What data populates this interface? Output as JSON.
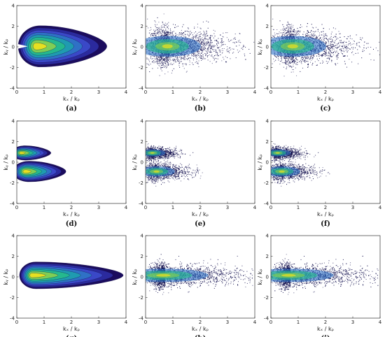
{
  "colors": {
    "levels": [
      "#1b0c5e",
      "#2b2a9e",
      "#3a48c8",
      "#2f71c6",
      "#1f9bb0",
      "#25b88e",
      "#7fce55",
      "#e6e021"
    ],
    "scatter": "#0d0a4a"
  },
  "chart_data": [
    {
      "caption": "(a)",
      "type": "contour",
      "xlabel": "kₓ / kₚ",
      "ylabel": "kᵧ / kₚ",
      "xlim": [
        0,
        4
      ],
      "ylim": [
        -4,
        4
      ],
      "xticks": [
        "0",
        "1",
        "2",
        "3",
        "4"
      ],
      "yticks": [
        "4",
        "2",
        "0",
        "-2",
        "-4"
      ],
      "blobs": [
        {
          "cx": 0.85,
          "cy": 0.05,
          "rx_right": 2.45,
          "rx_left": 0.8,
          "ry": 2.0,
          "gap_y": 0.35
        }
      ]
    },
    {
      "caption": "(b)",
      "type": "scatter",
      "xlabel": "kₓ / kₚ",
      "ylabel": "kᵧ / kₚ",
      "xlim": [
        0,
        4
      ],
      "ylim": [
        -4,
        4
      ],
      "xticks": [
        "0",
        "1",
        "2",
        "3",
        "4"
      ],
      "yticks": [
        "4",
        "2",
        "0",
        "-2",
        "-4"
      ],
      "blobs": [
        {
          "cx": 0.85,
          "cy": 0.05,
          "rx_right": 2.45,
          "rx_left": 0.8,
          "ry": 2.0,
          "gap_y": 0.35
        }
      ]
    },
    {
      "caption": "(c)",
      "type": "scatter",
      "xlabel": "kₓ / kₚ",
      "ylabel": "kᵧ / kₚ",
      "xlim": [
        0,
        4
      ],
      "ylim": [
        -4,
        4
      ],
      "xticks": [
        "0",
        "1",
        "2",
        "3",
        "4"
      ],
      "yticks": [
        "4",
        "2",
        "0",
        "-2",
        "-4"
      ],
      "blobs": [
        {
          "cx": 0.85,
          "cy": 0.05,
          "rx_right": 2.45,
          "rx_left": 0.8,
          "ry": 2.0,
          "gap_y": 0.35
        }
      ]
    },
    {
      "caption": "(d)",
      "type": "contour",
      "xlabel": "kₓ / kₚ",
      "ylabel": "kᵧ / kₚ",
      "xlim": [
        0,
        4
      ],
      "ylim": [
        -4,
        4
      ],
      "xticks": [
        "0",
        "1",
        "2",
        "3",
        "4"
      ],
      "yticks": [
        "4",
        "2",
        "0",
        "-2",
        "-4"
      ],
      "blobs": [
        {
          "cx": 0.3,
          "cy": 0.9,
          "rx_right": 0.95,
          "rx_left": 0.5,
          "ry": 0.7,
          "gap_y": 0
        },
        {
          "cx": 0.45,
          "cy": -0.9,
          "rx_right": 1.35,
          "rx_left": 0.6,
          "ry": 1.0,
          "gap_y": 0
        }
      ]
    },
    {
      "caption": "(e)",
      "type": "scatter",
      "xlabel": "kₓ / kₚ",
      "ylabel": "kᵧ / kₚ",
      "xlim": [
        0,
        4
      ],
      "ylim": [
        -4,
        4
      ],
      "xticks": [
        "0",
        "1",
        "2",
        "3",
        "4"
      ],
      "yticks": [
        "4",
        "2",
        "0",
        "-2",
        "-4"
      ],
      "blobs": [
        {
          "cx": 0.3,
          "cy": 0.9,
          "rx_right": 0.95,
          "rx_left": 0.5,
          "ry": 0.7,
          "gap_y": 0
        },
        {
          "cx": 0.45,
          "cy": -0.9,
          "rx_right": 1.35,
          "rx_left": 0.6,
          "ry": 1.0,
          "gap_y": 0
        }
      ]
    },
    {
      "caption": "(f)",
      "type": "scatter",
      "xlabel": "kₓ / kₚ",
      "ylabel": "kᵧ / kₚ",
      "xlim": [
        0,
        4
      ],
      "ylim": [
        -4,
        4
      ],
      "xticks": [
        "0",
        "1",
        "2",
        "3",
        "4"
      ],
      "yticks": [
        "4",
        "2",
        "0",
        "-2",
        "-4"
      ],
      "blobs": [
        {
          "cx": 0.3,
          "cy": 0.9,
          "rx_right": 0.95,
          "rx_left": 0.5,
          "ry": 0.7,
          "gap_y": 0
        },
        {
          "cx": 0.45,
          "cy": -0.9,
          "rx_right": 1.35,
          "rx_left": 0.6,
          "ry": 1.0,
          "gap_y": 0
        }
      ]
    },
    {
      "caption": "(g)",
      "type": "contour",
      "xlabel": "kₓ / kₚ",
      "ylabel": "kᵧ / kₚ",
      "xlim": [
        0,
        4
      ],
      "ylim": [
        -4,
        4
      ],
      "xticks": [
        "0",
        "1",
        "2",
        "3",
        "4"
      ],
      "yticks": [
        "4",
        "2",
        "0",
        "-2",
        "-4"
      ],
      "blobs": [
        {
          "cx": 0.7,
          "cy": 0.15,
          "rx_right": 3.2,
          "rx_left": 0.6,
          "ry": 1.3,
          "gap_y": 0
        }
      ]
    },
    {
      "caption": "(h)",
      "type": "scatter",
      "xlabel": "kₓ / kₚ",
      "ylabel": "kᵧ / kₚ",
      "xlim": [
        0,
        4
      ],
      "ylim": [
        -4,
        4
      ],
      "xticks": [
        "0",
        "1",
        "2",
        "3",
        "4"
      ],
      "yticks": [
        "4",
        "2",
        "0",
        "-2",
        "-4"
      ],
      "blobs": [
        {
          "cx": 0.7,
          "cy": 0.15,
          "rx_right": 3.3,
          "rx_left": 0.6,
          "ry": 1.3,
          "gap_y": 0
        }
      ]
    },
    {
      "caption": "(i)",
      "type": "scatter",
      "xlabel": "kₓ / kₚ",
      "ylabel": "kᵧ / kₚ",
      "xlim": [
        0,
        4
      ],
      "ylim": [
        -4,
        4
      ],
      "xticks": [
        "0",
        "1",
        "2",
        "3",
        "4"
      ],
      "yticks": [
        "4",
        "2",
        "0",
        "-2",
        "-4"
      ],
      "blobs": [
        {
          "cx": 0.7,
          "cy": 0.15,
          "rx_right": 3.3,
          "rx_left": 0.6,
          "ry": 1.3,
          "gap_y": 0
        }
      ]
    }
  ]
}
